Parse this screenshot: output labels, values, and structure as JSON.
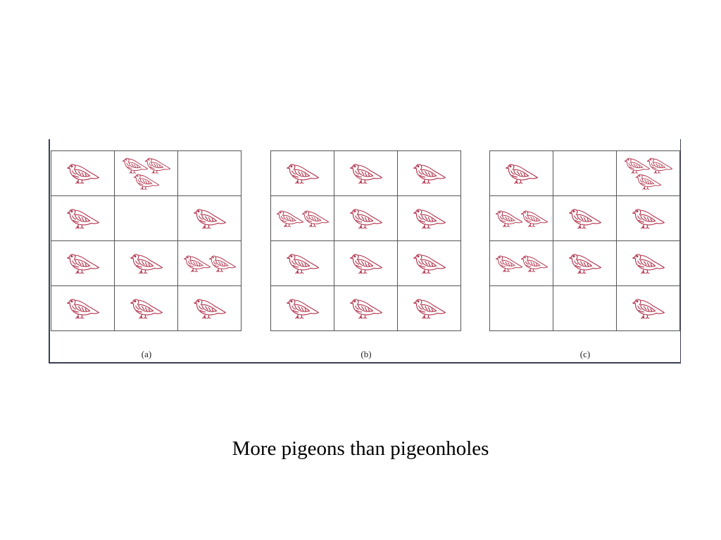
{
  "caption": "More pigeons than pigeonholes",
  "panels": [
    {
      "label": "(a)",
      "pigeons_per_hole": [
        [
          1,
          3,
          0
        ],
        [
          1,
          0,
          1
        ],
        [
          1,
          1,
          2
        ],
        [
          1,
          1,
          1
        ]
      ]
    },
    {
      "label": "(b)",
      "pigeons_per_hole": [
        [
          1,
          1,
          1
        ],
        [
          2,
          1,
          1
        ],
        [
          1,
          1,
          1
        ],
        [
          1,
          1,
          1
        ]
      ]
    },
    {
      "label": "(c)",
      "pigeons_per_hole": [
        [
          1,
          0,
          3
        ],
        [
          2,
          1,
          1
        ],
        [
          2,
          1,
          1
        ],
        [
          0,
          0,
          1
        ]
      ]
    }
  ],
  "colors": {
    "pigeon": "#b0304a",
    "grid_line": "#555555",
    "frame": "#3a3f52"
  },
  "icons": {
    "pigeon": "pigeon-icon"
  }
}
